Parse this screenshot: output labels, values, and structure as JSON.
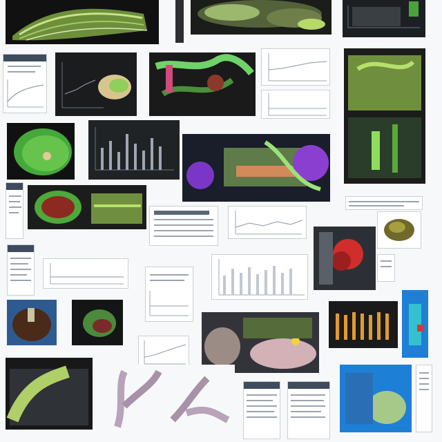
{
  "page": {
    "kind": "collage",
    "background": "#f7f8f9",
    "palette": {
      "green": "#5fbf3a",
      "lime": "#a6e34b",
      "purple": "#8b3fd1",
      "red": "#d12d2d",
      "blue": "#1e7fd6",
      "dark": "#16181a"
    }
  }
}
